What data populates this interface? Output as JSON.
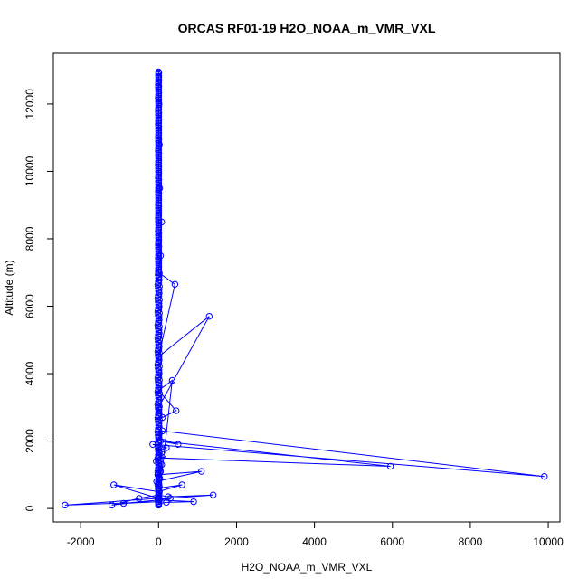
{
  "chart_data": {
    "type": "scatter",
    "title": "ORCAS RF01-19 H2O_NOAA_m_VMR_VXL",
    "xlabel": "H2O_NOAA_m_VMR_VXL",
    "ylabel": "Altitude (m)",
    "xlim": [
      -2700,
      10300
    ],
    "ylim": [
      -400,
      13500
    ],
    "xticks": [
      -2000,
      0,
      2000,
      4000,
      6000,
      8000,
      10000
    ],
    "yticks": [
      0,
      2000,
      4000,
      6000,
      8000,
      10000,
      12000
    ],
    "grid": false,
    "color": "#0000ff",
    "series": [
      {
        "values_note_free": true,
        "x": [
          0,
          5,
          -10,
          15,
          0,
          20,
          -5,
          10,
          0,
          30,
          -20,
          50,
          0,
          80,
          -60,
          120,
          0,
          200,
          -150,
          9900,
          100,
          0,
          500,
          50,
          5950,
          20,
          0,
          1100,
          -50,
          0,
          600,
          0,
          -1150,
          0,
          -2400,
          0,
          -900,
          0,
          -1200,
          -500,
          0,
          250,
          1400,
          0,
          300,
          0,
          900,
          200,
          0,
          350,
          0,
          450,
          100,
          0,
          1300,
          0,
          420,
          0,
          50,
          0,
          80,
          0,
          30,
          0,
          20,
          0,
          10,
          0,
          5,
          0
        ],
        "y": [
          100,
          150,
          200,
          300,
          400,
          500,
          600,
          700,
          800,
          900,
          1000,
          1100,
          1200,
          1300,
          1400,
          1600,
          1700,
          1800,
          1900,
          950,
          2300,
          2100,
          1900,
          2000,
          1250,
          1500,
          1000,
          1100,
          800,
          600,
          700,
          500,
          700,
          300,
          100,
          200,
          150,
          250,
          100,
          300,
          400,
          350,
          400,
          280,
          300,
          250,
          200,
          180,
          150,
          3800,
          3500,
          2900,
          2700,
          3000,
          5700,
          4500,
          6650,
          7000,
          7500,
          7900,
          8500,
          9000,
          9500,
          10000,
          10800,
          11500,
          12000,
          12500,
          12800,
          12950
        ]
      }
    ]
  }
}
